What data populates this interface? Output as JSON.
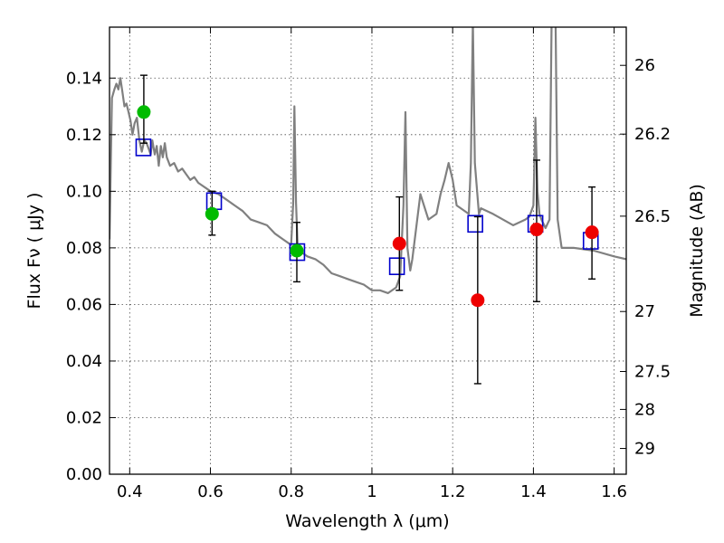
{
  "chart_data": {
    "type": "scatter",
    "title": "",
    "xlabel": "Wavelength  λ (μm)",
    "ylabel": "Flux  Fν  ( μJy )",
    "y2label": "Magnitude (AB)",
    "xlim": [
      0.35,
      1.63
    ],
    "ylim": [
      0.0,
      0.158
    ],
    "grid": true,
    "x_ticks": [
      0.4,
      0.6,
      0.8,
      1.0,
      1.2,
      1.4,
      1.6
    ],
    "x_tick_labels": [
      "0.4",
      "0.6",
      "0.8",
      "1",
      "1.2",
      "1.4",
      "1.6"
    ],
    "y_ticks": [
      0.0,
      0.02,
      0.04,
      0.06,
      0.08,
      0.1,
      0.12,
      0.14
    ],
    "y_tick_labels": [
      "0.00",
      "0.02",
      "0.04",
      "0.06",
      "0.08",
      "0.10",
      "0.12",
      "0.14"
    ],
    "y2_ticks": [
      {
        "label": "26",
        "flux": 0.1445
      },
      {
        "label": "26.2",
        "flux": 0.1202
      },
      {
        "label": "26.5",
        "flux": 0.0912
      },
      {
        "label": "27",
        "flux": 0.0575
      },
      {
        "label": "27.5",
        "flux": 0.0363
      },
      {
        "label": "28",
        "flux": 0.0229
      },
      {
        "label": "29",
        "flux": 0.0091
      }
    ],
    "series": [
      {
        "kind": "line",
        "color": "#808080",
        "x": [
          0.35,
          0.356,
          0.362,
          0.367,
          0.372,
          0.377,
          0.382,
          0.387,
          0.392,
          0.397,
          0.402,
          0.407,
          0.412,
          0.418,
          0.424,
          0.43,
          0.436,
          0.442,
          0.447,
          0.452,
          0.456,
          0.462,
          0.467,
          0.472,
          0.477,
          0.482,
          0.487,
          0.492,
          0.5,
          0.51,
          0.52,
          0.53,
          0.54,
          0.55,
          0.56,
          0.57,
          0.58,
          0.59,
          0.6,
          0.62,
          0.64,
          0.66,
          0.68,
          0.7,
          0.72,
          0.74,
          0.76,
          0.78,
          0.8,
          0.805,
          0.808,
          0.812,
          0.816,
          0.82,
          0.84,
          0.86,
          0.88,
          0.9,
          0.92,
          0.94,
          0.96,
          0.98,
          1.0,
          1.02,
          1.04,
          1.06,
          1.07,
          1.078,
          1.083,
          1.088,
          1.095,
          1.1,
          1.12,
          1.14,
          1.16,
          1.17,
          1.18,
          1.19,
          1.2,
          1.21,
          1.22,
          1.24,
          1.245,
          1.25,
          1.255,
          1.265,
          1.27,
          1.3,
          1.35,
          1.38,
          1.39,
          1.4,
          1.405,
          1.41,
          1.415,
          1.42,
          1.43,
          1.44,
          1.445,
          1.45,
          1.455,
          1.46,
          1.47,
          1.5,
          1.55,
          1.6,
          1.63
        ],
        "y": [
          0.083,
          0.133,
          0.136,
          0.138,
          0.136,
          0.14,
          0.135,
          0.13,
          0.131,
          0.128,
          0.125,
          0.12,
          0.124,
          0.126,
          0.118,
          0.114,
          0.118,
          0.117,
          0.115,
          0.113,
          0.118,
          0.113,
          0.116,
          0.109,
          0.116,
          0.112,
          0.117,
          0.112,
          0.109,
          0.11,
          0.107,
          0.108,
          0.106,
          0.104,
          0.105,
          0.103,
          0.102,
          0.101,
          0.1,
          0.099,
          0.097,
          0.095,
          0.093,
          0.09,
          0.089,
          0.088,
          0.085,
          0.083,
          0.081,
          0.096,
          0.13,
          0.096,
          0.08,
          0.079,
          0.077,
          0.076,
          0.074,
          0.071,
          0.07,
          0.069,
          0.068,
          0.067,
          0.065,
          0.065,
          0.064,
          0.066,
          0.07,
          0.095,
          0.128,
          0.08,
          0.072,
          0.076,
          0.099,
          0.09,
          0.092,
          0.099,
          0.104,
          0.11,
          0.104,
          0.095,
          0.094,
          0.092,
          0.11,
          0.16,
          0.11,
          0.092,
          0.094,
          0.092,
          0.088,
          0.09,
          0.091,
          0.095,
          0.126,
          0.1,
          0.092,
          0.09,
          0.087,
          0.09,
          0.16,
          0.16,
          0.16,
          0.09,
          0.08,
          0.08,
          0.079,
          0.077,
          0.076
        ]
      },
      {
        "kind": "model-photometry",
        "marker": "open-square",
        "color": "#0000cc",
        "x": [
          0.434,
          0.609,
          0.815,
          1.062,
          1.256,
          1.405,
          1.542
        ],
        "y": [
          0.1155,
          0.0965,
          0.0785,
          0.0735,
          0.0885,
          0.0885,
          0.0825
        ]
      },
      {
        "kind": "observed-photometry",
        "marker": "filled-circle",
        "color": "#00bb00",
        "x": [
          0.435,
          0.604,
          0.814
        ],
        "y": [
          0.128,
          0.092,
          0.079
        ],
        "err_lo": [
          0.117,
          0.0845,
          0.068
        ],
        "err_hi": [
          0.141,
          0.1,
          0.089
        ]
      },
      {
        "kind": "observed-photometry",
        "marker": "filled-circle",
        "color": "#ee0000",
        "x": [
          1.068,
          1.262,
          1.408,
          1.545
        ],
        "y": [
          0.0815,
          0.0615,
          0.0865,
          0.0855
        ],
        "err_lo": [
          0.065,
          0.032,
          0.061,
          0.069
        ],
        "err_hi": [
          0.098,
          0.091,
          0.111,
          0.1015
        ]
      }
    ]
  }
}
